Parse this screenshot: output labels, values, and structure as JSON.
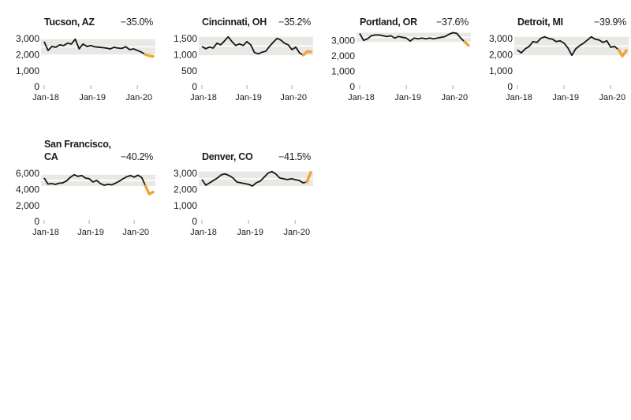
{
  "colors": {
    "line": "#161616",
    "highlight": "#F0A437",
    "band": "#E9E8E4",
    "band_midline": "#FFFFFF",
    "tick": "#C8C8C5",
    "text": "#1B1B1B",
    "background": "#FFFFFF"
  },
  "x_axis": {
    "tick_labels": [
      "Jan-18",
      "Jan-19",
      "Jan-20"
    ],
    "tick_months": [
      0,
      12,
      24
    ]
  },
  "chart_data": [
    {
      "type": "line",
      "title": "Tucson, AZ",
      "change_label": "−35.0%",
      "y_tick_labels": [
        "3,000",
        "2,000",
        "1,000",
        "0"
      ],
      "y_tick_values": [
        3000,
        2000,
        1000,
        0
      ],
      "ylim": [
        0,
        3280
      ],
      "x_tick_labels": [
        "Jan-18",
        "Jan-19",
        "Jan-20"
      ],
      "values": [
        2800,
        2250,
        2500,
        2450,
        2600,
        2550,
        2700,
        2650,
        2950,
        2350,
        2650,
        2500,
        2550,
        2480,
        2450,
        2430,
        2400,
        2350,
        2450,
        2400,
        2380,
        2480,
        2300,
        2350,
        2250,
        2150,
        2000,
        1920,
        1880
      ],
      "highlight_start_index": 26
    },
    {
      "type": "line",
      "title": "Cincinnati, OH",
      "change_label": "−35.2%",
      "y_tick_labels": [
        "1,500",
        "1,000",
        "500",
        "0"
      ],
      "y_tick_values": [
        1500,
        1000,
        500,
        0
      ],
      "ylim": [
        0,
        1640
      ],
      "x_tick_labels": [
        "Jan-18",
        "Jan-19",
        "Jan-20"
      ],
      "values": [
        1250,
        1180,
        1230,
        1200,
        1350,
        1300,
        1420,
        1550,
        1400,
        1280,
        1330,
        1280,
        1400,
        1300,
        1060,
        1020,
        1070,
        1100,
        1250,
        1380,
        1500,
        1450,
        1350,
        1300,
        1150,
        1230,
        1050,
        980,
        1090,
        1080
      ],
      "highlight_start_index": 27
    },
    {
      "type": "line",
      "title": "Portland, OR",
      "change_label": "−37.6%",
      "y_tick_labels": [
        "3,000",
        "2,000",
        "1,000",
        "0"
      ],
      "y_tick_values": [
        3000,
        2000,
        1000,
        0
      ],
      "ylim": [
        0,
        3420
      ],
      "x_tick_labels": [
        "Jan-18",
        "Jan-19",
        "Jan-20"
      ],
      "values": [
        3450,
        3000,
        3100,
        3300,
        3350,
        3350,
        3300,
        3250,
        3300,
        3150,
        3250,
        3200,
        3150,
        2950,
        3150,
        3100,
        3150,
        3100,
        3150,
        3100,
        3150,
        3200,
        3250,
        3400,
        3500,
        3450,
        3150,
        2900,
        2680
      ],
      "highlight_start_index": 27
    },
    {
      "type": "line",
      "title": "Detroit, MI",
      "change_label": "−39.9%",
      "y_tick_labels": [
        "3,000",
        "2,000",
        "1,000",
        "0"
      ],
      "y_tick_values": [
        3000,
        2000,
        1000,
        0
      ],
      "ylim": [
        0,
        3280
      ],
      "x_tick_labels": [
        "Jan-18",
        "Jan-19",
        "Jan-20"
      ],
      "values": [
        2280,
        2100,
        2350,
        2500,
        2800,
        2750,
        3000,
        3100,
        3000,
        2950,
        2800,
        2850,
        2700,
        2400,
        1950,
        2350,
        2550,
        2700,
        2900,
        3100,
        2950,
        2900,
        2750,
        2850,
        2450,
        2500,
        2300,
        1900,
        2250
      ],
      "highlight_start_index": 26
    },
    {
      "type": "line",
      "title": "San Francisco, CA",
      "change_label": "−40.2%",
      "y_tick_labels": [
        "6,000",
        "4,000",
        "2,000",
        "0"
      ],
      "y_tick_values": [
        6000,
        4000,
        2000,
        0
      ],
      "ylim": [
        0,
        6560
      ],
      "x_tick_labels": [
        "Jan-18",
        "Jan-19",
        "Jan-20"
      ],
      "values": [
        5400,
        4650,
        4700,
        4600,
        4750,
        4800,
        5050,
        5500,
        5800,
        5600,
        5700,
        5400,
        5300,
        4900,
        5100,
        4700,
        4500,
        4600,
        4550,
        4750,
        5000,
        5300,
        5550,
        5700,
        5500,
        5750,
        5450,
        4400,
        3400,
        3650
      ],
      "highlight_start_index": 27
    },
    {
      "type": "line",
      "title": "Denver, CO",
      "change_label": "−41.5%",
      "y_tick_labels": [
        "3,000",
        "2,000",
        "1,000",
        "0"
      ],
      "y_tick_values": [
        3000,
        2000,
        1000,
        0
      ],
      "ylim": [
        0,
        3280
      ],
      "x_tick_labels": [
        "Jan-18",
        "Jan-19",
        "Jan-20"
      ],
      "values": [
        2600,
        2250,
        2400,
        2550,
        2700,
        2900,
        2950,
        2850,
        2700,
        2450,
        2400,
        2350,
        2300,
        2200,
        2400,
        2500,
        2750,
        3000,
        3100,
        2950,
        2700,
        2650,
        2600,
        2650,
        2600,
        2550,
        2400,
        2450,
        3050
      ],
      "highlight_start_index": 27
    }
  ]
}
